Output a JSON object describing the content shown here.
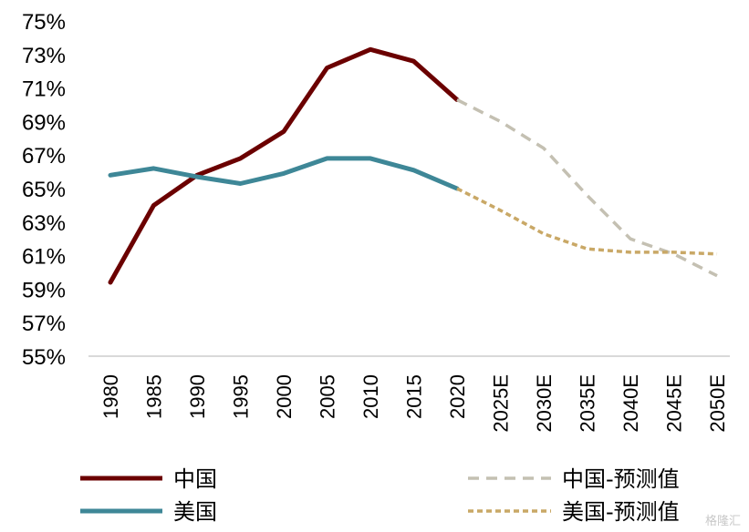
{
  "chart_data": {
    "type": "line",
    "title": "",
    "xlabel": "",
    "ylabel": "",
    "categories": [
      "1980",
      "1985",
      "1990",
      "1995",
      "2000",
      "2005",
      "2010",
      "2015",
      "2020",
      "2025E",
      "2030E",
      "2035E",
      "2040E",
      "2045E",
      "2050E"
    ],
    "y_ticks": [
      "55%",
      "57%",
      "59%",
      "61%",
      "63%",
      "65%",
      "67%",
      "69%",
      "71%",
      "73%",
      "75%"
    ],
    "ylim": [
      55,
      75
    ],
    "grid": false,
    "legend_position": "bottom",
    "series": [
      {
        "name": "中国",
        "style": "solid",
        "color": "#6b0000",
        "values": [
          59.4,
          64.0,
          65.8,
          66.8,
          68.4,
          72.2,
          73.3,
          72.6,
          70.3,
          null,
          null,
          null,
          null,
          null,
          null
        ]
      },
      {
        "name": "美国",
        "style": "solid",
        "color": "#3e8797",
        "values": [
          65.8,
          66.2,
          65.7,
          65.3,
          65.9,
          66.8,
          66.8,
          66.1,
          65.0,
          null,
          null,
          null,
          null,
          null,
          null
        ]
      },
      {
        "name": "中国-预测值",
        "style": "dashed",
        "color": "#c4c0b2",
        "values": [
          null,
          null,
          null,
          null,
          null,
          null,
          null,
          null,
          70.3,
          69.0,
          67.4,
          64.6,
          62.0,
          61.1,
          59.8
        ]
      },
      {
        "name": "美国-预测值",
        "style": "dotted",
        "color": "#c9a866",
        "values": [
          null,
          null,
          null,
          null,
          null,
          null,
          null,
          null,
          65.0,
          63.7,
          62.3,
          61.4,
          61.2,
          61.2,
          61.1
        ]
      }
    ]
  },
  "watermark": "格隆汇"
}
